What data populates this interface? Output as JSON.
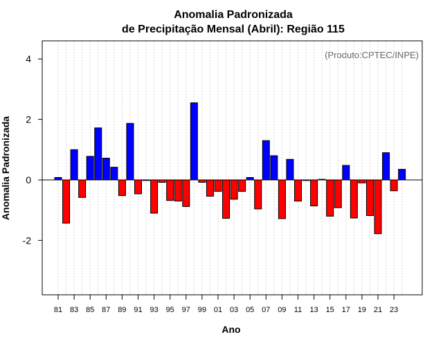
{
  "colors": {
    "positive": "#0000ff",
    "negative": "#ff0000",
    "grid": "#d3d3d3",
    "credit": "#666666"
  },
  "chart_data": {
    "type": "bar",
    "title": "Anomalia Padronizada",
    "subtitle": "de Precipitação Mensal (Abril): Região 115",
    "xlabel": "Ano",
    "ylabel": "Anomalia Padronizada",
    "credit": "(Produto:CPTEC/INPE)",
    "ylim": [
      -3.8,
      4.6
    ],
    "yticks": [
      -2,
      0,
      2,
      4
    ],
    "ytick_labels": [
      "-2",
      "0",
      "2",
      "4"
    ],
    "grid": "vertical dotted lines at each year",
    "categories": [
      "81",
      "82",
      "83",
      "84",
      "85",
      "86",
      "87",
      "88",
      "89",
      "90",
      "91",
      "92",
      "93",
      "94",
      "95",
      "96",
      "97",
      "98",
      "99",
      "00",
      "01",
      "02",
      "03",
      "04",
      "05",
      "06",
      "07",
      "08",
      "09",
      "10",
      "11",
      "12",
      "13",
      "14",
      "15",
      "16",
      "17",
      "18",
      "19",
      "20",
      "21",
      "22",
      "23",
      "24"
    ],
    "xtick_labels": [
      "81",
      "83",
      "85",
      "87",
      "89",
      "91",
      "93",
      "95",
      "97",
      "99",
      "01",
      "03",
      "05",
      "07",
      "09",
      "11",
      "13",
      "15",
      "17",
      "19",
      "21",
      "23"
    ],
    "values": [
      0.08,
      -1.43,
      1.0,
      -0.58,
      0.78,
      1.72,
      0.72,
      0.42,
      -0.52,
      1.87,
      -0.46,
      -0.02,
      -1.1,
      -0.08,
      -0.68,
      -0.7,
      -0.88,
      2.55,
      -0.08,
      -0.54,
      -0.38,
      -1.27,
      -0.64,
      -0.38,
      0.08,
      -0.96,
      1.3,
      0.8,
      -1.28,
      0.68,
      -0.7,
      -0.02,
      -0.86,
      0.02,
      -1.2,
      -0.92,
      0.48,
      -1.26,
      -0.1,
      -1.18,
      -1.78,
      0.9,
      -0.36,
      0.35
    ]
  }
}
